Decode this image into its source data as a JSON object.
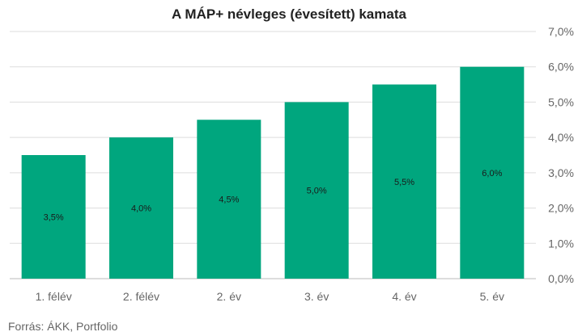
{
  "chart_data": {
    "type": "bar",
    "title": "A MÁP+ névleges (évesített) kamata",
    "categories": [
      "1. félév",
      "2. félév",
      "2. év",
      "3. év",
      "4. év",
      "5. év"
    ],
    "values": [
      3.5,
      4.0,
      4.5,
      5.0,
      5.5,
      6.0
    ],
    "value_labels": [
      "3,5%",
      "4,0%",
      "4,5%",
      "5,0%",
      "5,5%",
      "6,0%"
    ],
    "xlabel": "",
    "ylabel": "",
    "ylim": [
      0,
      7
    ],
    "y_ticks": [
      0,
      1,
      2,
      3,
      4,
      5,
      6,
      7
    ],
    "y_tick_labels": [
      "0,0%",
      "1,0%",
      "2,0%",
      "3,0%",
      "4,0%",
      "5,0%",
      "6,0%",
      "7,0%"
    ],
    "y_axis_position": "right",
    "grid": true,
    "legend": "none",
    "bar_color": "#00a67e",
    "grid_color": "#dddddd"
  },
  "footer": {
    "source": "Forrás: ÁKK, Portfolio"
  }
}
